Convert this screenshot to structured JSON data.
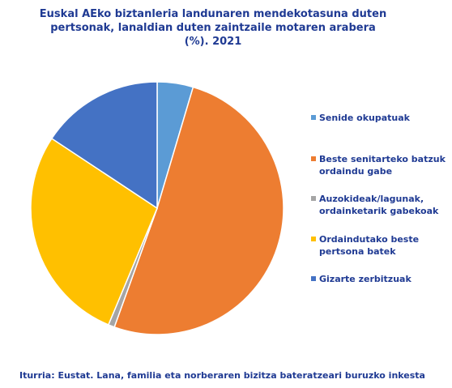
{
  "chart_data": {
    "type": "pie",
    "title_lines": [
      "Euskal AEko biztanleria landunaren mendekotasuna duten",
      "pertsonak, lanaldian duten zaintzaile motaren arabera",
      "(%). 2021"
    ],
    "slices": [
      {
        "label_lines": [
          "Senide okupatuak"
        ],
        "value": 4.6,
        "color": "#5b9bd5"
      },
      {
        "label_lines": [
          "Beste senitarteko batzuk",
          "ordaindu gabe"
        ],
        "value": 50.9,
        "color": "#ed7d31"
      },
      {
        "label_lines": [
          "Auzokideak/lagunak,",
          "ordainketarik gabekoak"
        ],
        "value": 0.8,
        "color": "#a5a5a5"
      },
      {
        "label_lines": [
          "Ordaindutako beste",
          "pertsona batek"
        ],
        "value": 28.0,
        "color": "#ffc000"
      },
      {
        "label_lines": [
          "Gizarte zerbitzuak"
        ],
        "value": 15.7,
        "color": "#4472c4"
      }
    ],
    "legend_position": "right",
    "source": "Iturria: Eustat. Lana, familia eta norberaren bizitza bateratzeari buruzko inkesta"
  }
}
